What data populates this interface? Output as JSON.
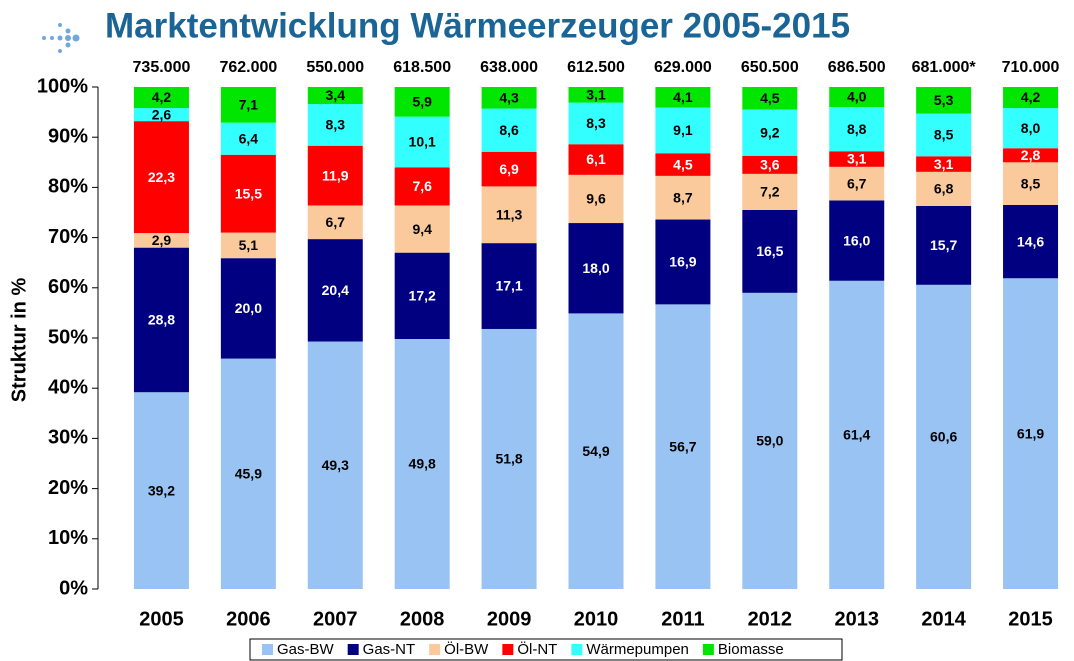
{
  "chart_data": {
    "type": "stacked_bar",
    "title": "Marktentwicklung Wärmeerzeuger 2005-2015",
    "ylabel": "Struktur in %",
    "categories": [
      "2005",
      "2006",
      "2007",
      "2008",
      "2009",
      "2010",
      "2011",
      "2012",
      "2013",
      "2014",
      "2015"
    ],
    "annotations": [
      "735.000",
      "762.000",
      "550.000",
      "618.500",
      "638.000",
      "612.500",
      "629.000",
      "650.500",
      "686.500",
      "681.000*",
      "710.000"
    ],
    "series": [
      {
        "name": "Gas-BW",
        "color": "#99c3f2",
        "values": [
          39.2,
          45.9,
          49.3,
          49.8,
          51.8,
          54.9,
          56.7,
          59.0,
          61.4,
          60.6,
          61.9
        ],
        "value_labels": [
          "39,2",
          "45,9",
          "49,3",
          "49,8",
          "51,8",
          "54,9",
          "56,7",
          "59,0",
          "61,4",
          "60,6",
          "61,9"
        ]
      },
      {
        "name": "Gas-NT",
        "color": "#000080",
        "values": [
          28.8,
          20.0,
          20.4,
          17.2,
          17.1,
          18.0,
          16.9,
          16.5,
          16.0,
          15.7,
          14.6
        ],
        "value_labels": [
          "28,8",
          "20,0",
          "20,4",
          "17,2",
          "17,1",
          "18,0",
          "16,9",
          "16,5",
          "16,0",
          "15,7",
          "14,6"
        ]
      },
      {
        "name": "Öl-BW",
        "color": "#fac99c",
        "values": [
          2.9,
          5.1,
          6.7,
          9.4,
          11.3,
          9.6,
          8.7,
          7.2,
          6.7,
          6.8,
          8.5
        ],
        "value_labels": [
          "2,9",
          "5,1",
          "6,7",
          "9,4",
          "11,3",
          "9,6",
          "8,7",
          "7,2",
          "6,7",
          "6,8",
          "8,5"
        ]
      },
      {
        "name": "Öl-NT",
        "color": "#ff0000",
        "values": [
          22.3,
          15.5,
          11.9,
          7.6,
          6.9,
          6.1,
          4.5,
          3.6,
          3.1,
          3.1,
          2.8
        ],
        "value_labels": [
          "22,3",
          "15,5",
          "11,9",
          "7,6",
          "6,9",
          "6,1",
          "4,5",
          "3,6",
          "3,1",
          "3,1",
          "2,8"
        ]
      },
      {
        "name": "Wärmepumpen",
        "color": "#33ffff",
        "values": [
          2.6,
          6.4,
          8.3,
          10.1,
          8.6,
          8.3,
          9.1,
          9.2,
          8.8,
          8.5,
          8.0
        ],
        "value_labels": [
          "2,6",
          "6,4",
          "8,3",
          "10,1",
          "8,6",
          "8,3",
          "9,1",
          "9,2",
          "8,8",
          "8,5",
          "8,0"
        ]
      },
      {
        "name": "Biomasse",
        "color": "#00e600",
        "values": [
          4.2,
          7.1,
          3.4,
          5.9,
          4.3,
          3.1,
          4.1,
          4.5,
          4.0,
          5.3,
          4.2
        ],
        "value_labels": [
          "4,2",
          "7,1",
          "3,4",
          "5,9",
          "4,3",
          "3,1",
          "4,1",
          "4,5",
          "4,0",
          "5,3",
          "4,2"
        ]
      }
    ],
    "ylim": [
      0,
      100
    ],
    "yticks": [
      {
        "value": 0,
        "label": "0%"
      },
      {
        "value": 10,
        "label": "10%"
      },
      {
        "value": 20,
        "label": "20%"
      },
      {
        "value": 30,
        "label": "30%"
      },
      {
        "value": 40,
        "label": "40%"
      },
      {
        "value": 50,
        "label": "50%"
      },
      {
        "value": 60,
        "label": "60%"
      },
      {
        "value": 70,
        "label": "70%"
      },
      {
        "value": 80,
        "label": "80%"
      },
      {
        "value": 90,
        "label": "90%"
      },
      {
        "value": 100,
        "label": "100%"
      }
    ],
    "grid": false
  }
}
